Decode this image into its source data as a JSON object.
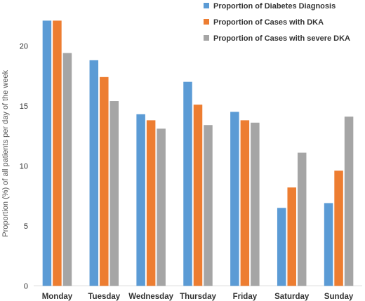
{
  "chart_data": {
    "type": "bar",
    "title": "",
    "xlabel": "",
    "ylabel": "Proportion (%) of all patients per day of the week",
    "ylim": [
      0,
      23
    ],
    "yticks": [
      0,
      5,
      10,
      15,
      20
    ],
    "grid": false,
    "legend_position": "top-right",
    "categories": [
      "Monday",
      "Tuesday",
      "Wednesday",
      "Thursday",
      "Friday",
      "Saturday",
      "Sunday"
    ],
    "series": [
      {
        "name": "Proportion of Diabetes Diagnosis",
        "color": "#5B9BD5",
        "values": [
          22.1,
          18.8,
          14.3,
          17.0,
          14.5,
          6.5,
          6.9
        ]
      },
      {
        "name": "Proportion of Cases with DKA",
        "color": "#ED7D31",
        "values": [
          22.1,
          17.4,
          13.8,
          15.1,
          13.8,
          8.2,
          9.6
        ]
      },
      {
        "name": "Proportion of Cases with severe DKA",
        "color": "#A5A5A5",
        "values": [
          19.4,
          15.4,
          13.1,
          13.4,
          13.6,
          11.1,
          14.1
        ]
      }
    ]
  }
}
